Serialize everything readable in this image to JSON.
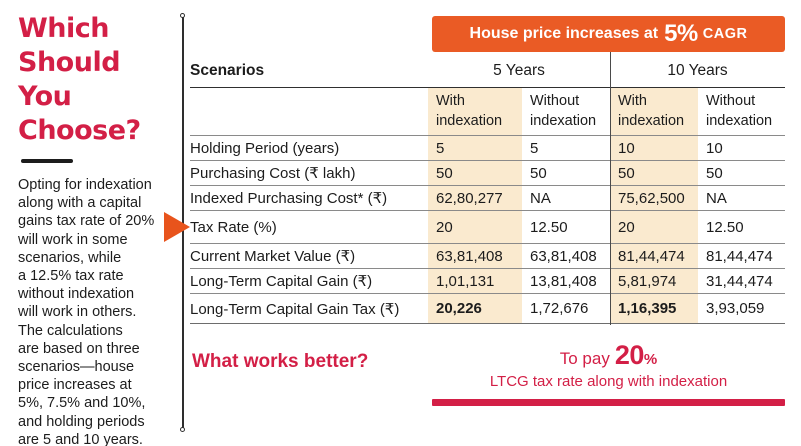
{
  "left_panel": {
    "title": "Which\nShould\nYou\nChoose?",
    "body": "Opting for indexation\nalong with a capital\ngains tax rate of 20%\nwill work in some\nscenarios, while\na 12.5% tax rate\nwithout indexation\nwill work in others.\nThe calculations\nare based on three\nscenarios—house\nprice increases at\n5%, 7.5% and 10%,\nand holding periods\nare 5 and 10 years."
  },
  "banner": {
    "prefix": "House price increases at",
    "highlight": "5%",
    "suffix": "CAGR"
  },
  "table": {
    "scenarios_label": "Scenarios",
    "group_headers": [
      "5 Years",
      "10 Years"
    ],
    "sub_headers": [
      "With indexation",
      "Without indexation",
      "With indexation",
      "Without indexation"
    ],
    "rows": [
      {
        "label": "Holding Period (years)",
        "values": [
          "5",
          "5",
          "10",
          "10"
        ]
      },
      {
        "label": "Purchasing Cost (₹ lakh)",
        "values": [
          "50",
          "50",
          "50",
          "50"
        ]
      },
      {
        "label": "Indexed Purchasing Cost* (₹)",
        "values": [
          "62,80,277",
          "NA",
          "75,62,500",
          "NA"
        ]
      },
      {
        "label": "Tax Rate (%)",
        "values": [
          "20",
          "12.50",
          "20",
          "12.50"
        ],
        "tall": true
      },
      {
        "label": "Current Market Value (₹)",
        "values": [
          "63,81,408",
          "63,81,408",
          "81,44,474",
          "81,44,474"
        ]
      },
      {
        "label": "Long-Term Capital Gain (₹)",
        "values": [
          "1,01,131",
          "13,81,408",
          "5,81,974",
          "31,44,474"
        ]
      },
      {
        "label": "Long-Term Capital Gain Tax (₹)",
        "values": [
          "20,226",
          "1,72,676",
          "1,16,395",
          "3,93,059"
        ],
        "bold_cols": [
          0,
          2
        ]
      }
    ]
  },
  "footer": {
    "question": "What works better?",
    "answer_prefix": "To pay",
    "answer_highlight": "20",
    "answer_percent": "%",
    "answer_line2": "LTCG tax rate along with indexation"
  },
  "colors": {
    "crimson": "#d31f46",
    "orange": "#ea5b25",
    "arrow_orange": "#e8541c",
    "peach": "#faeacf",
    "ink": "#1c1c1c",
    "line_gray": "#8a8a8a"
  },
  "chart_data": {
    "type": "table",
    "title": "House price increases at 5% CAGR",
    "column_groups": [
      "5 Years",
      "10 Years"
    ],
    "columns": [
      "Scenarios",
      "5Y With indexation",
      "5Y Without indexation",
      "10Y With indexation",
      "10Y Without indexation"
    ],
    "rows": [
      [
        "Holding Period (years)",
        "5",
        "5",
        "10",
        "10"
      ],
      [
        "Purchasing Cost (₹ lakh)",
        "50",
        "50",
        "50",
        "50"
      ],
      [
        "Indexed Purchasing Cost* (₹)",
        "62,80,277",
        "NA",
        "75,62,500",
        "NA"
      ],
      [
        "Tax Rate (%)",
        "20",
        "12.50",
        "20",
        "12.50"
      ],
      [
        "Current Market Value (₹)",
        "63,81,408",
        "63,81,408",
        "81,44,474",
        "81,44,474"
      ],
      [
        "Long-Term Capital Gain (₹)",
        "1,01,131",
        "13,81,408",
        "5,81,974",
        "31,44,474"
      ],
      [
        "Long-Term Capital Gain Tax (₹)",
        "20,226",
        "1,72,676",
        "1,16,395",
        "3,93,059"
      ]
    ],
    "conclusion": "To pay 20% LTCG tax rate along with indexation"
  }
}
